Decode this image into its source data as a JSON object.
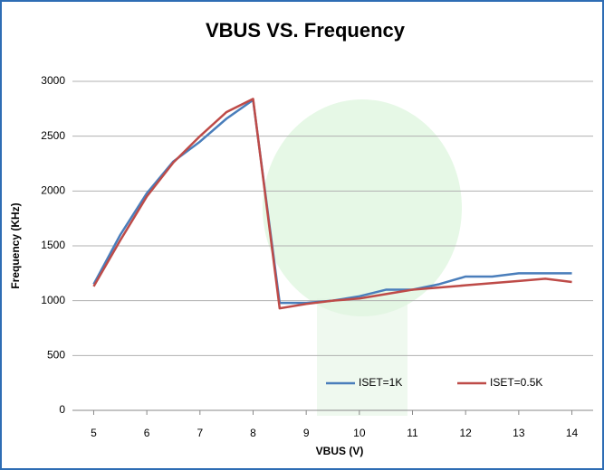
{
  "chart_data": {
    "type": "line",
    "title": "VBUS VS. Frequency",
    "x_label": "VBUS (V)",
    "y_label": "Frequency (KHz)",
    "x": [
      5,
      5.5,
      6,
      6.5,
      7,
      7.5,
      8,
      8.5,
      9,
      9.5,
      10,
      10.5,
      11,
      11.5,
      12,
      12.5,
      13,
      13.5,
      14
    ],
    "series": [
      {
        "name": "ISET=1K",
        "color": "#4a7ebb",
        "values": [
          1150,
          1600,
          1980,
          2270,
          2450,
          2660,
          2830,
          980,
          980,
          1000,
          1040,
          1100,
          1100,
          1150,
          1220,
          1220,
          1250,
          1250,
          1250
        ]
      },
      {
        "name": "ISET=0.5K",
        "color": "#be4b48",
        "values": [
          1130,
          1550,
          1950,
          2260,
          2500,
          2720,
          2840,
          930,
          970,
          1000,
          1020,
          1060,
          1100,
          1120,
          1140,
          1160,
          1180,
          1200,
          1170
        ]
      }
    ],
    "xlim": [
      4.6,
      14.4
    ],
    "xticks": [
      5,
      6,
      7,
      8,
      9,
      10,
      11,
      12,
      13,
      14
    ],
    "ylim": [
      0,
      3000
    ],
    "yticks": [
      0,
      500,
      1000,
      1500,
      2000,
      2500,
      3000
    ],
    "grid": true,
    "legend": "bottom"
  }
}
